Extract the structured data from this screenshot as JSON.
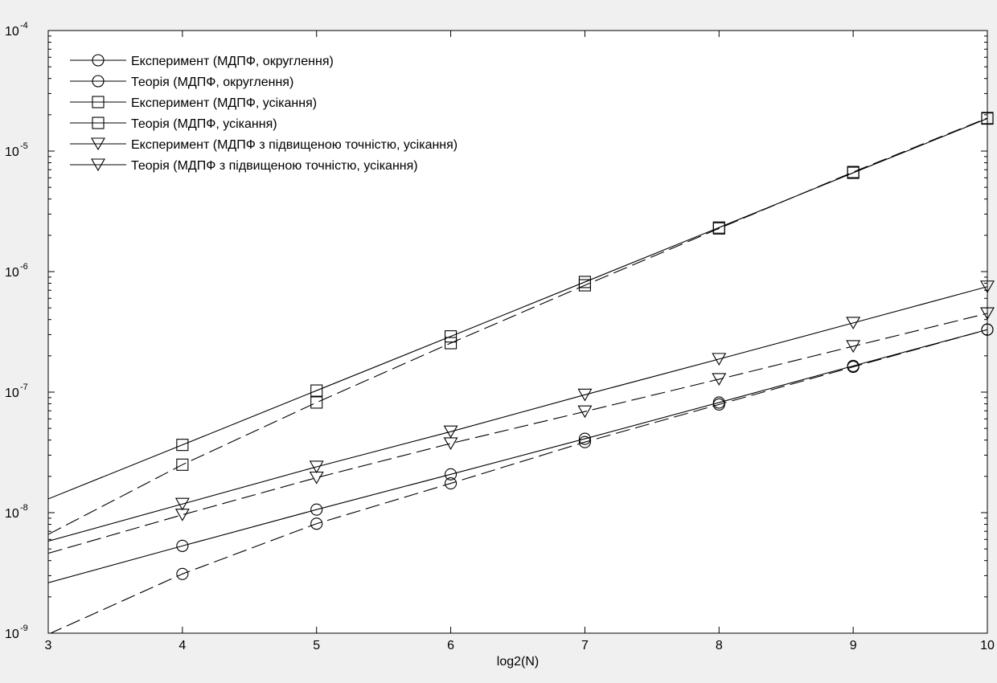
{
  "chart_data": {
    "type": "line",
    "title": "",
    "xlabel": "log2(N)",
    "ylabel": "",
    "xlim": [
      3,
      10
    ],
    "ylim": [
      1e-09,
      0.0001
    ],
    "yscale": "log",
    "grid": false,
    "legend_position": "top-left",
    "x_ticks": [
      3,
      4,
      5,
      6,
      7,
      8,
      9,
      10
    ],
    "y_ticks": [
      {
        "base": "10",
        "exponent": "-9",
        "value": 1e-09
      },
      {
        "base": "10",
        "exponent": "-8",
        "value": 1e-08
      },
      {
        "base": "10",
        "exponent": "-7",
        "value": 1e-07
      },
      {
        "base": "10",
        "exponent": "-6",
        "value": 1e-06
      },
      {
        "base": "10",
        "exponent": "-5",
        "value": 1e-05
      },
      {
        "base": "10",
        "exponent": "-4",
        "value": 0.0001
      }
    ],
    "x": [
      3,
      4,
      5,
      6,
      7,
      8,
      9,
      10
    ],
    "series": [
      {
        "name": "Експеримент (МДПФ, округлення)",
        "marker": "circle",
        "line": "dashed",
        "values": [
          9.8e-10,
          3.1e-09,
          8.1e-09,
          1.75e-08,
          3.85e-08,
          7.9e-08,
          1.62e-07,
          3.3e-07
        ]
      },
      {
        "name": "Теорія (МДПФ, округлення)",
        "marker": "circle",
        "line": "solid",
        "values": [
          2.62e-09,
          5.3e-09,
          1.06e-08,
          2.08e-08,
          4.1e-08,
          8.2e-08,
          1.65e-07,
          3.3e-07
        ]
      },
      {
        "name": "Експеримент (МДПФ, усікання)",
        "marker": "square",
        "line": "dashed",
        "values": [
          6.6e-09,
          2.5e-08,
          8.2e-08,
          2.55e-07,
          7.7e-07,
          2.28e-06,
          6.7e-06,
          1.88e-05
        ]
      },
      {
        "name": "Теорія (МДПФ, усікання)",
        "marker": "square",
        "line": "solid",
        "values": [
          1.3e-08,
          3.65e-08,
          1.03e-07,
          2.9e-07,
          8.2e-07,
          2.32e-06,
          6.6e-06,
          1.86e-05
        ]
      },
      {
        "name": "Експеримент (МДПФ з підвищеною точністю, усікання)",
        "marker": "triangle",
        "line": "dashed",
        "values": [
          4.6e-09,
          9.6e-09,
          1.95e-08,
          3.75e-08,
          6.9e-08,
          1.28e-07,
          2.4e-07,
          4.5e-07
        ]
      },
      {
        "name": "Теорія (МДПФ з підвищеною точністю, усікання)",
        "marker": "triangle",
        "line": "solid",
        "values": [
          5.8e-09,
          1.18e-08,
          2.4e-08,
          4.7e-08,
          9.5e-08,
          1.88e-07,
          3.75e-07,
          7.5e-07
        ]
      }
    ]
  }
}
